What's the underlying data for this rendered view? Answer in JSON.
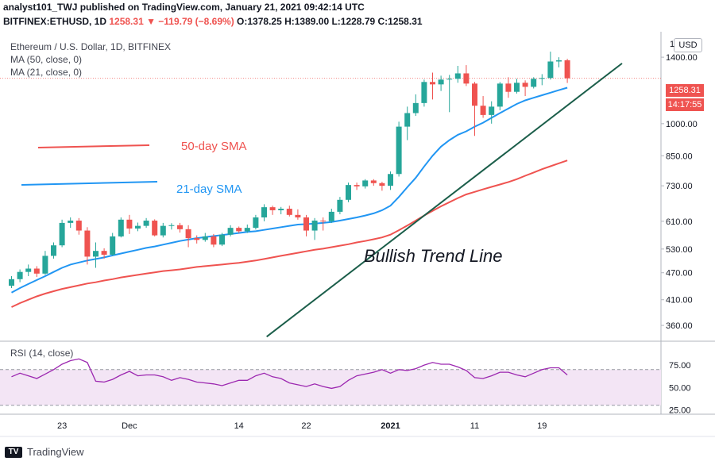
{
  "header": {
    "line1": "analyst101_TWJ published on TradingView.com, January 21, 2021 09:42:14 UTC",
    "symbol": "BITFINEX:ETHUSD, 1D",
    "change": "1258.31 ▼ −119.79 (−8.69%)",
    "ohlc": "O:1378.25 H:1389.00 L:1228.79 C:1258.31"
  },
  "legend": {
    "main": "Ethereum / U.S. Dollar, 1D, BITFINEX",
    "ma50": "MA (50, close, 0)",
    "ma21": "MA (21, close, 0)",
    "rsi": "RSI (14, close)"
  },
  "annotations": {
    "sma50": "50-day SMA",
    "sma21": "21-day SMA",
    "trend": "Bullish Trend Line"
  },
  "price_axis": {
    "currency": "USD",
    "top_partial": "1",
    "last_price": "1258.31",
    "countdown": "14:17:55"
  },
  "brand": "TradingView",
  "colors": {
    "up": "#26a69a",
    "down": "#ef5350",
    "ma50": "#ef5350",
    "ma21": "#2196f3",
    "trend": "#1b5e4a",
    "rsi": "#9c27b0",
    "rsi_band": "#f3e5f5"
  },
  "chart_data": [
    {
      "type": "candlestick",
      "title": "Ethereum / U.S. Dollar, 1D, BITFINEX",
      "y_scale": "log",
      "ylim": [
        335,
        1580
      ],
      "y_ticks": [
        1400,
        1000,
        850,
        730,
        610,
        530,
        470,
        410,
        360
      ],
      "y_tick_labels": [
        "1400.00",
        "1000.00",
        "850.00",
        "730.00",
        "610.00",
        "530.00",
        "470.00",
        "410.00",
        "360.00"
      ],
      "x_ticks": [
        {
          "label": "23",
          "index": 6
        },
        {
          "label": "Dec",
          "index": 14
        },
        {
          "label": "14",
          "index": 27
        },
        {
          "label": "22",
          "index": 35
        },
        {
          "label": "2021",
          "index": 45
        },
        {
          "label": "11",
          "index": 55
        },
        {
          "label": "19",
          "index": 63
        }
      ],
      "candles": [
        {
          "o": 440,
          "h": 462,
          "l": 435,
          "c": 455
        },
        {
          "o": 455,
          "h": 478,
          "l": 448,
          "c": 472
        },
        {
          "o": 472,
          "h": 490,
          "l": 462,
          "c": 480
        },
        {
          "o": 480,
          "h": 486,
          "l": 460,
          "c": 468
        },
        {
          "o": 468,
          "h": 525,
          "l": 465,
          "c": 512
        },
        {
          "o": 512,
          "h": 548,
          "l": 505,
          "c": 540
        },
        {
          "o": 540,
          "h": 615,
          "l": 535,
          "c": 605
        },
        {
          "o": 605,
          "h": 622,
          "l": 590,
          "c": 612
        },
        {
          "o": 612,
          "h": 620,
          "l": 570,
          "c": 582
        },
        {
          "o": 582,
          "h": 592,
          "l": 490,
          "c": 510
        },
        {
          "o": 510,
          "h": 548,
          "l": 482,
          "c": 525
        },
        {
          "o": 525,
          "h": 532,
          "l": 505,
          "c": 515
        },
        {
          "o": 515,
          "h": 575,
          "l": 512,
          "c": 565
        },
        {
          "o": 565,
          "h": 622,
          "l": 562,
          "c": 615
        },
        {
          "o": 615,
          "h": 630,
          "l": 572,
          "c": 588
        },
        {
          "o": 588,
          "h": 606,
          "l": 580,
          "c": 596
        },
        {
          "o": 596,
          "h": 620,
          "l": 590,
          "c": 612
        },
        {
          "o": 612,
          "h": 616,
          "l": 565,
          "c": 568
        },
        {
          "o": 568,
          "h": 605,
          "l": 562,
          "c": 596
        },
        {
          "o": 596,
          "h": 604,
          "l": 585,
          "c": 598
        },
        {
          "o": 598,
          "h": 605,
          "l": 576,
          "c": 586
        },
        {
          "o": 586,
          "h": 598,
          "l": 535,
          "c": 560
        },
        {
          "o": 560,
          "h": 568,
          "l": 545,
          "c": 555
        },
        {
          "o": 555,
          "h": 575,
          "l": 550,
          "c": 565
        },
        {
          "o": 565,
          "h": 572,
          "l": 535,
          "c": 542
        },
        {
          "o": 542,
          "h": 575,
          "l": 538,
          "c": 570
        },
        {
          "o": 570,
          "h": 598,
          "l": 565,
          "c": 590
        },
        {
          "o": 590,
          "h": 594,
          "l": 575,
          "c": 580
        },
        {
          "o": 580,
          "h": 600,
          "l": 575,
          "c": 590
        },
        {
          "o": 590,
          "h": 630,
          "l": 585,
          "c": 622
        },
        {
          "o": 622,
          "h": 665,
          "l": 610,
          "c": 655
        },
        {
          "o": 655,
          "h": 660,
          "l": 630,
          "c": 645
        },
        {
          "o": 645,
          "h": 656,
          "l": 632,
          "c": 650
        },
        {
          "o": 650,
          "h": 660,
          "l": 625,
          "c": 630
        },
        {
          "o": 630,
          "h": 648,
          "l": 615,
          "c": 622
        },
        {
          "o": 622,
          "h": 630,
          "l": 565,
          "c": 582
        },
        {
          "o": 582,
          "h": 620,
          "l": 555,
          "c": 612
        },
        {
          "o": 612,
          "h": 622,
          "l": 582,
          "c": 610
        },
        {
          "o": 610,
          "h": 650,
          "l": 605,
          "c": 640
        },
        {
          "o": 640,
          "h": 690,
          "l": 632,
          "c": 680
        },
        {
          "o": 680,
          "h": 742,
          "l": 672,
          "c": 733
        },
        {
          "o": 733,
          "h": 742,
          "l": 715,
          "c": 728
        },
        {
          "o": 728,
          "h": 755,
          "l": 720,
          "c": 750
        },
        {
          "o": 750,
          "h": 755,
          "l": 730,
          "c": 740
        },
        {
          "o": 740,
          "h": 745,
          "l": 712,
          "c": 730
        },
        {
          "o": 730,
          "h": 785,
          "l": 715,
          "c": 775
        },
        {
          "o": 775,
          "h": 1010,
          "l": 765,
          "c": 985
        },
        {
          "o": 985,
          "h": 1090,
          "l": 920,
          "c": 1055
        },
        {
          "o": 1055,
          "h": 1160,
          "l": 1040,
          "c": 1110
        },
        {
          "o": 1110,
          "h": 1250,
          "l": 1090,
          "c": 1235
        },
        {
          "o": 1235,
          "h": 1295,
          "l": 1130,
          "c": 1220
        },
        {
          "o": 1220,
          "h": 1275,
          "l": 1180,
          "c": 1250
        },
        {
          "o": 1250,
          "h": 1280,
          "l": 1060,
          "c": 1255
        },
        {
          "o": 1255,
          "h": 1340,
          "l": 1230,
          "c": 1290
        },
        {
          "o": 1290,
          "h": 1345,
          "l": 1210,
          "c": 1225
        },
        {
          "o": 1225,
          "h": 1235,
          "l": 940,
          "c": 1095
        },
        {
          "o": 1095,
          "h": 1150,
          "l": 1030,
          "c": 1045
        },
        {
          "o": 1045,
          "h": 1120,
          "l": 1000,
          "c": 1090
        },
        {
          "o": 1090,
          "h": 1235,
          "l": 1070,
          "c": 1225
        },
        {
          "o": 1225,
          "h": 1265,
          "l": 1140,
          "c": 1175
        },
        {
          "o": 1175,
          "h": 1255,
          "l": 1165,
          "c": 1230
        },
        {
          "o": 1230,
          "h": 1245,
          "l": 1150,
          "c": 1205
        },
        {
          "o": 1205,
          "h": 1265,
          "l": 1195,
          "c": 1255
        },
        {
          "o": 1255,
          "h": 1285,
          "l": 1215,
          "c": 1260
        },
        {
          "o": 1260,
          "h": 1440,
          "l": 1250,
          "c": 1370
        },
        {
          "o": 1370,
          "h": 1400,
          "l": 1330,
          "c": 1378
        },
        {
          "o": 1378.25,
          "h": 1389.0,
          "l": 1228.79,
          "c": 1258.31
        }
      ],
      "ma50": [
        395,
        403,
        410,
        417,
        423,
        428,
        433,
        437,
        441,
        445,
        448,
        452,
        455,
        459,
        462,
        465,
        468,
        471,
        474,
        476,
        478,
        481,
        484,
        486,
        488,
        490,
        492,
        494,
        497,
        500,
        504,
        508,
        512,
        516,
        520,
        524,
        528,
        531,
        535,
        539,
        543,
        548,
        552,
        557,
        562,
        570,
        583,
        597,
        612,
        628,
        643,
        658,
        672,
        686,
        699,
        708,
        717,
        726,
        735,
        744,
        755,
        768,
        781,
        794,
        806,
        818,
        830
      ],
      "ma21": [
        425,
        435,
        444,
        453,
        462,
        472,
        482,
        490,
        495,
        500,
        504,
        508,
        513,
        518,
        523,
        528,
        533,
        537,
        542,
        547,
        552,
        556,
        560,
        563,
        566,
        569,
        572,
        575,
        578,
        580,
        584,
        588,
        592,
        596,
        600,
        601,
        603,
        605,
        608,
        612,
        617,
        622,
        628,
        635,
        645,
        660,
        690,
        725,
        760,
        805,
        850,
        890,
        920,
        945,
        962,
        985,
        1005,
        1030,
        1055,
        1080,
        1105,
        1125,
        1140,
        1155,
        1170,
        1185,
        1200
      ],
      "trend_line": {
        "x": [
          30.3,
          72.5
        ],
        "y": [
          340,
          1357
        ]
      }
    },
    {
      "type": "line",
      "title": "RSI (14, close)",
      "ylim": [
        20,
        100
      ],
      "y_ticks": [
        75,
        50,
        25
      ],
      "y_tick_labels": [
        "75.00",
        "50.00",
        "25.00"
      ],
      "band": [
        30,
        70
      ],
      "values": [
        62,
        66,
        63,
        60,
        65,
        70,
        76,
        80,
        82,
        78,
        57,
        56,
        59,
        64,
        68,
        63,
        64,
        64,
        62,
        58,
        61,
        59,
        56,
        55,
        54,
        52,
        55,
        58,
        58,
        63,
        66,
        62,
        60,
        55,
        53,
        51,
        54,
        51,
        49,
        51,
        58,
        63,
        65,
        67,
        70,
        66,
        70,
        69,
        71,
        75,
        78,
        76,
        76,
        73,
        69,
        61,
        60,
        63,
        67,
        67,
        64,
        62,
        66,
        70,
        72,
        72,
        64
      ]
    }
  ]
}
